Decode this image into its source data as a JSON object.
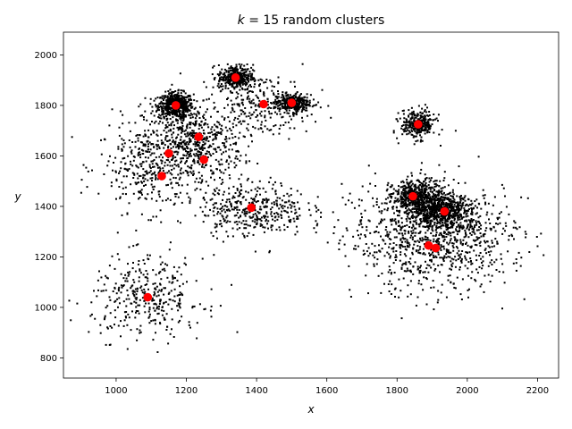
{
  "chart_data": {
    "type": "scatter",
    "title_prefix": "k",
    "title_suffix": " = 15 random clusters",
    "xlabel": "x",
    "ylabel": "y",
    "xlim": [
      850,
      2260
    ],
    "ylim": [
      720,
      2090
    ],
    "xticks": [
      1000,
      1200,
      1400,
      1600,
      1800,
      2000,
      2200
    ],
    "yticks": [
      800,
      1000,
      1200,
      1400,
      1600,
      1800,
      2000
    ],
    "grid": false,
    "point_color": "#000000",
    "centroid_color": "#ff0000",
    "clusters": [
      {
        "x": 1170,
        "y": 1800,
        "sx": 25,
        "sy": 25,
        "n": 550
      },
      {
        "x": 1220,
        "y": 1650,
        "sx": 70,
        "sy": 75,
        "n": 550
      },
      {
        "x": 1100,
        "y": 1560,
        "sx": 75,
        "sy": 90,
        "n": 350
      },
      {
        "x": 1340,
        "y": 1910,
        "sx": 25,
        "sy": 25,
        "n": 350
      },
      {
        "x": 1420,
        "y": 1800,
        "sx": 70,
        "sy": 60,
        "n": 250
      },
      {
        "x": 1500,
        "y": 1810,
        "sx": 25,
        "sy": 18,
        "n": 300
      },
      {
        "x": 1390,
        "y": 1390,
        "sx": 75,
        "sy": 55,
        "n": 400
      },
      {
        "x": 1090,
        "y": 1040,
        "sx": 80,
        "sy": 80,
        "n": 350
      },
      {
        "x": 1860,
        "y": 1725,
        "sx": 25,
        "sy": 28,
        "n": 300
      },
      {
        "x": 1860,
        "y": 1435,
        "sx": 35,
        "sy": 35,
        "n": 500
      },
      {
        "x": 1930,
        "y": 1380,
        "sx": 40,
        "sy": 35,
        "n": 550
      },
      {
        "x": 1900,
        "y": 1250,
        "sx": 110,
        "sy": 105,
        "n": 600
      },
      {
        "x": 1830,
        "y": 1340,
        "sx": 100,
        "sy": 90,
        "n": 200
      },
      {
        "x": 2000,
        "y": 1300,
        "sx": 80,
        "sy": 80,
        "n": 200
      }
    ],
    "centroids": [
      {
        "x": 1170,
        "y": 1800
      },
      {
        "x": 1340,
        "y": 1910
      },
      {
        "x": 1420,
        "y": 1805
      },
      {
        "x": 1500,
        "y": 1810
      },
      {
        "x": 1235,
        "y": 1675
      },
      {
        "x": 1150,
        "y": 1610
      },
      {
        "x": 1250,
        "y": 1585
      },
      {
        "x": 1130,
        "y": 1520
      },
      {
        "x": 1385,
        "y": 1395
      },
      {
        "x": 1090,
        "y": 1040
      },
      {
        "x": 1860,
        "y": 1725
      },
      {
        "x": 1845,
        "y": 1440
      },
      {
        "x": 1935,
        "y": 1380
      },
      {
        "x": 1890,
        "y": 1245
      },
      {
        "x": 1910,
        "y": 1235
      }
    ]
  }
}
